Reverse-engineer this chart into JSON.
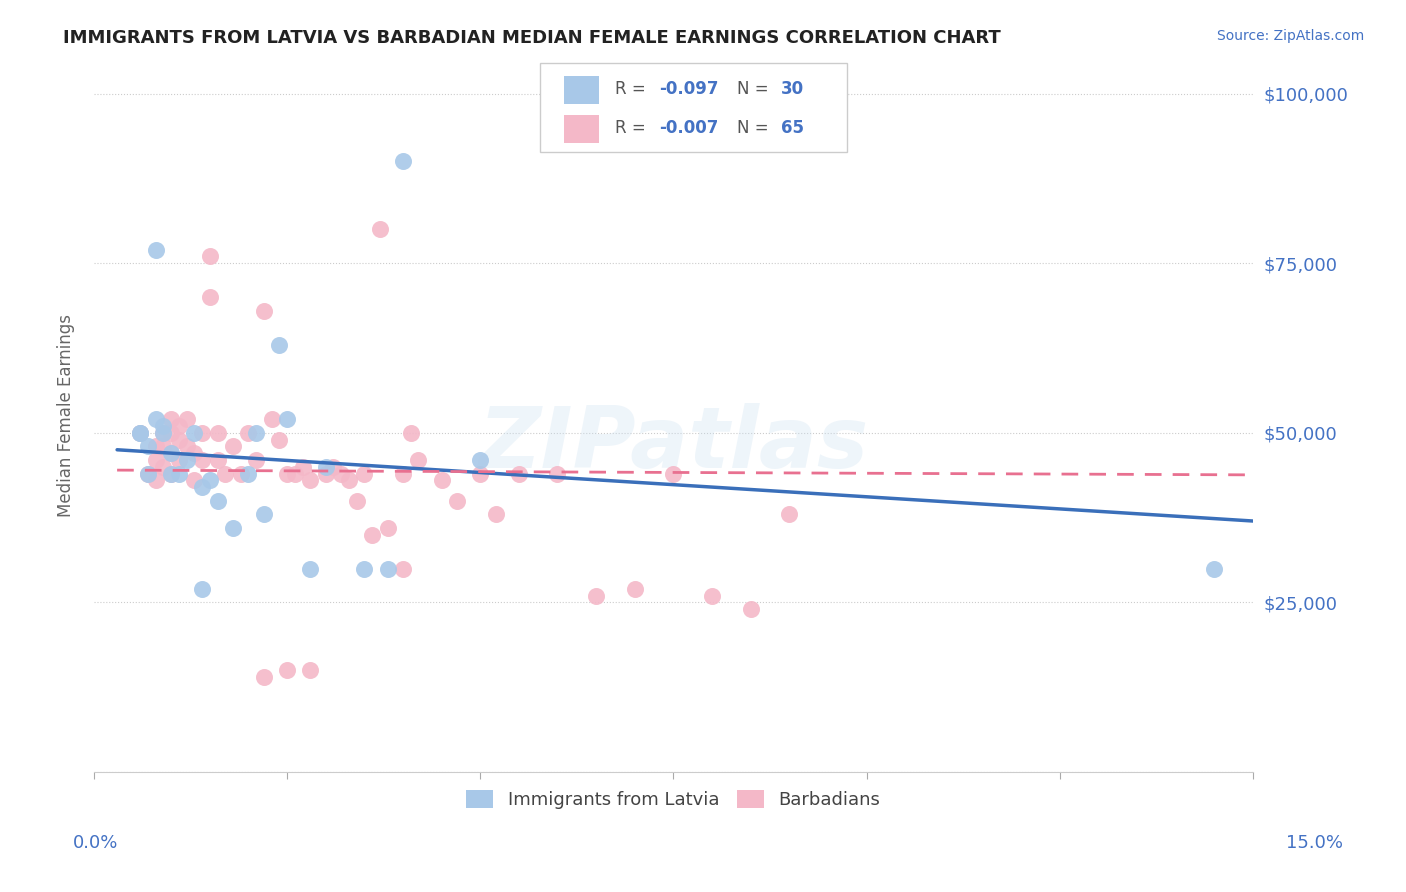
{
  "title": "IMMIGRANTS FROM LATVIA VS BARBADIAN MEDIAN FEMALE EARNINGS CORRELATION CHART",
  "source": "Source: ZipAtlas.com",
  "ylabel": "Median Female Earnings",
  "y_ticks": [
    0,
    25000,
    50000,
    75000,
    100000
  ],
  "y_tick_labels": [
    "",
    "$25,000",
    "$50,000",
    "$75,000",
    "$100,000"
  ],
  "xlim": [
    0.0,
    0.15
  ],
  "ylim": [
    0,
    105000
  ],
  "legend_r1": "-0.097",
  "legend_n1": "30",
  "legend_r2": "-0.007",
  "legend_n2": "65",
  "legend_label1": "Immigrants from Latvia",
  "legend_label2": "Barbadians",
  "watermark": "ZIPatlas",
  "blue_color": "#a8c8e8",
  "pink_color": "#f4b8c8",
  "line_blue": "#3a6fba",
  "line_pink": "#e87090",
  "title_color": "#222222",
  "axis_color": "#4472c4",
  "blue_scatter_x": [
    0.008,
    0.04,
    0.006,
    0.007,
    0.008,
    0.009,
    0.01,
    0.011,
    0.012,
    0.013,
    0.014,
    0.015,
    0.016,
    0.018,
    0.021,
    0.022,
    0.024,
    0.025,
    0.02,
    0.03,
    0.035,
    0.038,
    0.05,
    0.028,
    0.006,
    0.007,
    0.009,
    0.01,
    0.145,
    0.014
  ],
  "blue_scatter_y": [
    77000,
    90000,
    50000,
    48000,
    52000,
    51000,
    47000,
    44000,
    46000,
    50000,
    42000,
    43000,
    40000,
    36000,
    50000,
    38000,
    63000,
    52000,
    44000,
    45000,
    30000,
    30000,
    46000,
    30000,
    50000,
    44000,
    50000,
    44000,
    30000,
    27000
  ],
  "pink_scatter_x": [
    0.006,
    0.007,
    0.008,
    0.008,
    0.008,
    0.009,
    0.009,
    0.009,
    0.01,
    0.01,
    0.01,
    0.01,
    0.011,
    0.011,
    0.011,
    0.012,
    0.012,
    0.013,
    0.013,
    0.014,
    0.014,
    0.015,
    0.015,
    0.016,
    0.016,
    0.017,
    0.018,
    0.019,
    0.02,
    0.021,
    0.022,
    0.023,
    0.024,
    0.025,
    0.026,
    0.027,
    0.028,
    0.03,
    0.031,
    0.032,
    0.033,
    0.034,
    0.035,
    0.036,
    0.037,
    0.04,
    0.041,
    0.042,
    0.045,
    0.047,
    0.05,
    0.052,
    0.055,
    0.06,
    0.065,
    0.07,
    0.075,
    0.08,
    0.085,
    0.09,
    0.038,
    0.04,
    0.025,
    0.028,
    0.022
  ],
  "pink_scatter_y": [
    50000,
    44000,
    48000,
    46000,
    43000,
    50000,
    48000,
    45000,
    52000,
    50000,
    47000,
    44000,
    51000,
    49000,
    46000,
    52000,
    48000,
    47000,
    43000,
    50000,
    46000,
    76000,
    70000,
    50000,
    46000,
    44000,
    48000,
    44000,
    50000,
    46000,
    68000,
    52000,
    49000,
    44000,
    44000,
    45000,
    43000,
    44000,
    45000,
    44000,
    43000,
    40000,
    44000,
    35000,
    80000,
    44000,
    50000,
    46000,
    43000,
    40000,
    44000,
    38000,
    44000,
    44000,
    26000,
    27000,
    44000,
    26000,
    24000,
    38000,
    36000,
    30000,
    15000,
    15000,
    14000
  ],
  "x_tick_positions": [
    0.0,
    0.025,
    0.05,
    0.075,
    0.1,
    0.125,
    0.15
  ],
  "blue_line_x": [
    0.003,
    0.15
  ],
  "blue_line_y": [
    47500,
    37000
  ],
  "pink_line_x": [
    0.003,
    0.15
  ],
  "pink_line_y": [
    44500,
    43800
  ]
}
